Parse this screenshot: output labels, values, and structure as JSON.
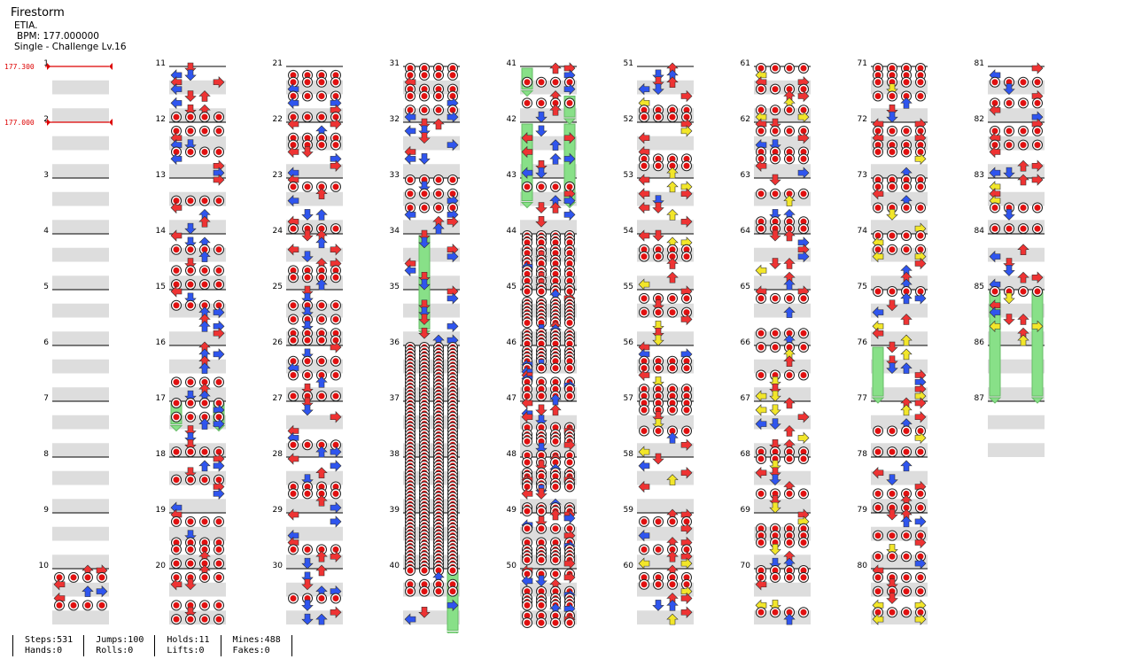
{
  "song": {
    "title": "Firestorm",
    "artist": "ETIA.",
    "bpm_text": "BPM: 177.000000",
    "chart_text": "Single - Challenge  Lv.16"
  },
  "bpm_markers": [
    {
      "measure": 1,
      "label": "177.300"
    },
    {
      "measure": 2,
      "label": "177.000"
    }
  ],
  "measures_per_column": 10,
  "total_measures": 87,
  "stats": [
    {
      "top": "Steps:531",
      "bottom": "Hands:0"
    },
    {
      "top": "Jumps:100",
      "bottom": "Rolls:0"
    },
    {
      "top": "Holds:11",
      "bottom": "Lifts:0"
    },
    {
      "top": "Mines:488",
      "bottom": "Fakes:0"
    }
  ],
  "colors": {
    "quarter": "#ee3333",
    "eighth": "#2f55ee",
    "sixteenth": "#f2e62a",
    "hold": "#88e088",
    "band": "#dddddd",
    "bpm": "#dd0000"
  },
  "holds": [
    {
      "lane": 0,
      "from": 41,
      "to": 41.5
    },
    {
      "lane": 3,
      "from": 41.5,
      "to": 42
    },
    {
      "lane": 0,
      "from": 42,
      "to": 43.5
    },
    {
      "lane": 3,
      "from": 42,
      "to": 43.5
    },
    {
      "lane": 1,
      "from": 34,
      "to": 35.8
    },
    {
      "lane": 3,
      "from": 40,
      "to": 41.2
    },
    {
      "lane": 0,
      "from": 17,
      "to": 17.5
    },
    {
      "lane": 3,
      "from": 17,
      "to": 17.5
    },
    {
      "lane": 0,
      "from": 76,
      "to": 77
    },
    {
      "lane": 0,
      "from": 85,
      "to": 87
    },
    {
      "lane": 3,
      "from": 85,
      "to": 87
    }
  ]
}
